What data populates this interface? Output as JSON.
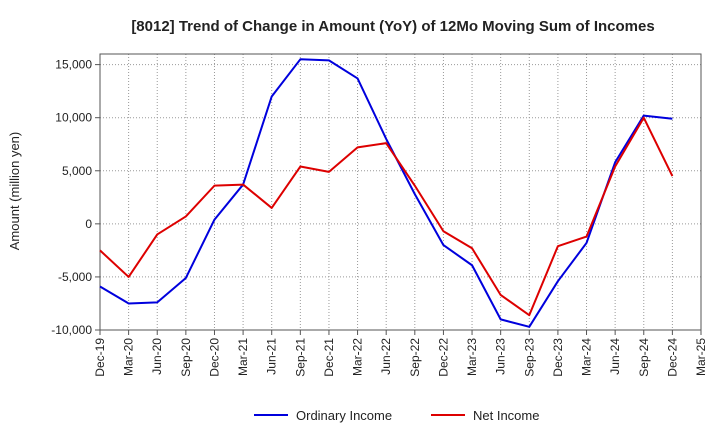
{
  "chart_data": {
    "type": "line",
    "title": "[8012]  Trend of Change in Amount (YoY) of 12Mo Moving Sum of Incomes",
    "xlabel": "",
    "ylabel": "Amount (million yen)",
    "ylim": [
      -10000,
      16000
    ],
    "yticks": [
      -10000,
      -5000,
      0,
      5000,
      10000,
      15000
    ],
    "ytick_labels": [
      "-10,000",
      "-5,000",
      "0",
      "5,000",
      "10,000",
      "15,000"
    ],
    "categories": [
      "Dec-19",
      "Mar-20",
      "Jun-20",
      "Sep-20",
      "Dec-20",
      "Mar-21",
      "Jun-21",
      "Sep-21",
      "Dec-21",
      "Mar-22",
      "Jun-22",
      "Sep-22",
      "Dec-22",
      "Mar-23",
      "Jun-23",
      "Sep-23",
      "Dec-23",
      "Mar-24",
      "Jun-24",
      "Sep-24",
      "Dec-24",
      "Mar-25"
    ],
    "grid": true,
    "legend_position": "bottom",
    "series": [
      {
        "name": "Ordinary Income",
        "color": "#0000dd",
        "values": [
          -5900,
          -7500,
          -7400,
          -5100,
          400,
          3700,
          12000,
          15500,
          15400,
          13700,
          8000,
          2800,
          -2000,
          -3900,
          -9000,
          -9700,
          -5400,
          -1800,
          5800,
          10200,
          9900,
          null
        ]
      },
      {
        "name": "Net Income",
        "color": "#dd0000",
        "values": [
          -2500,
          -5000,
          -1000,
          700,
          3600,
          3700,
          1500,
          5400,
          4900,
          7200,
          7600,
          3600,
          -700,
          -2300,
          -6700,
          -8600,
          -2100,
          -1200,
          5400,
          10000,
          4500,
          null
        ]
      }
    ]
  }
}
